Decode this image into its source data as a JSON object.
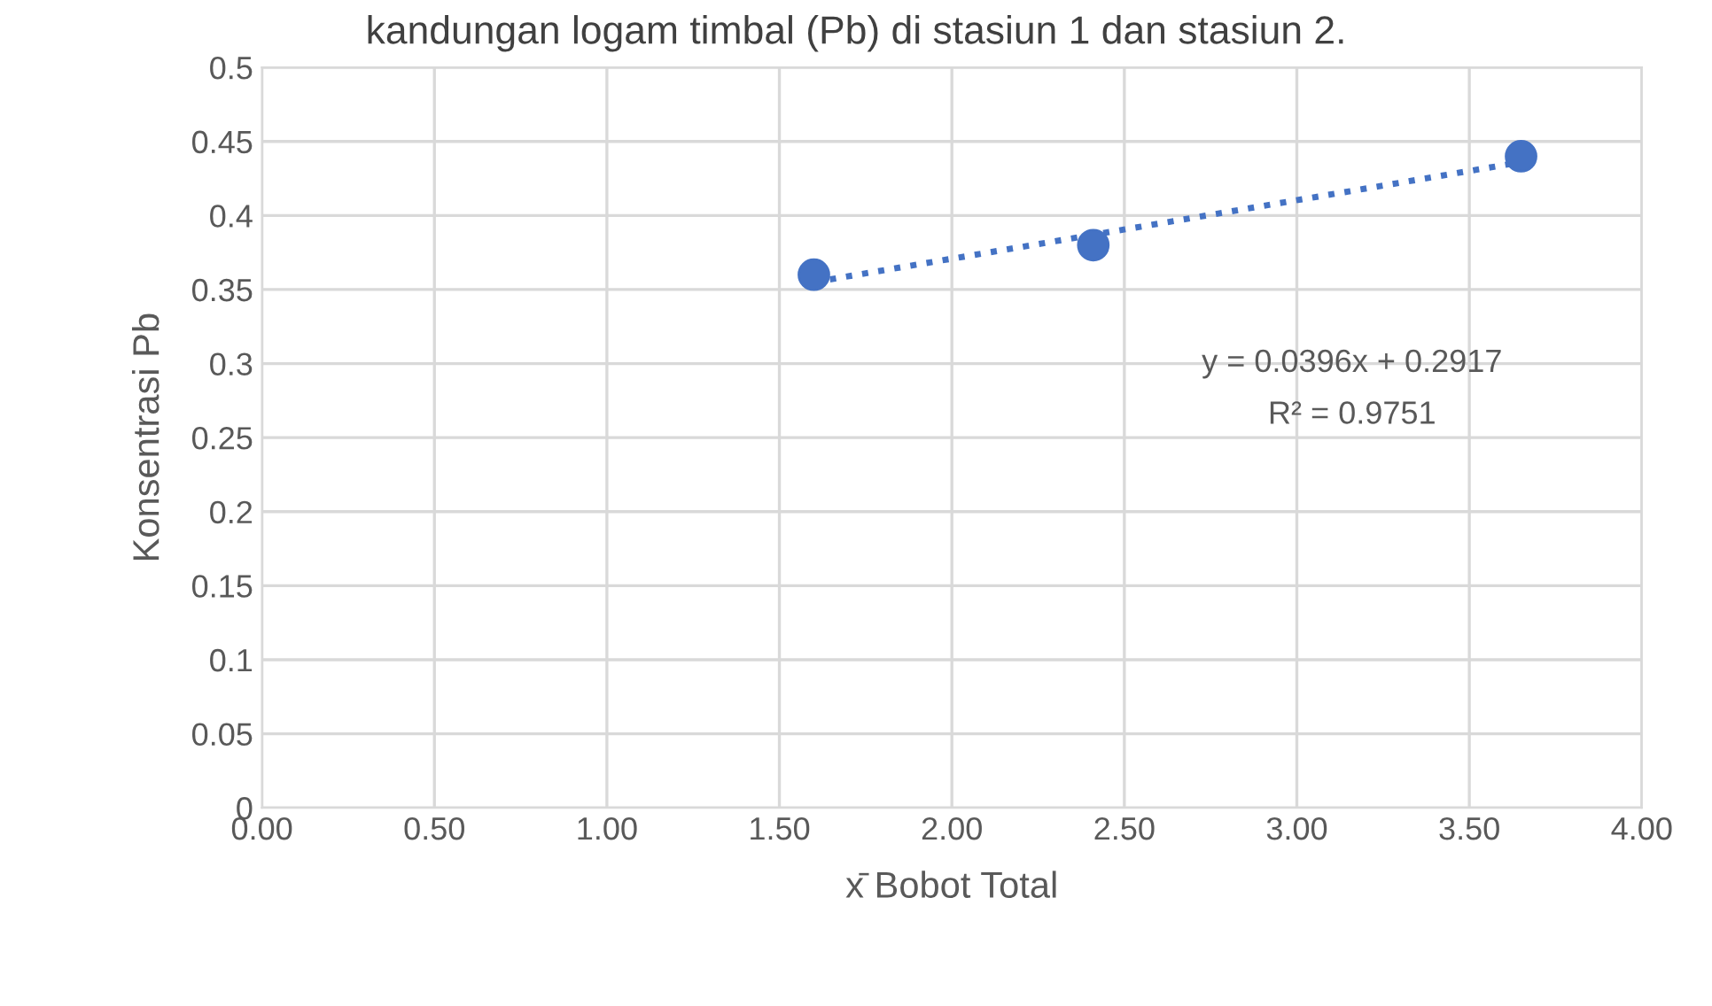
{
  "chart_data": {
    "type": "scatter",
    "title": "kandungan logam timbal (Pb) di stasiun 1 dan stasiun 2.",
    "xlabel": "x̄ Bobot Total",
    "ylabel": "Konsentrasi Pb",
    "x": [
      1.6,
      2.41,
      3.65
    ],
    "series": [
      {
        "type": "scatter",
        "color": "#4472c4",
        "values": [
          0.36,
          0.38,
          0.44
        ],
        "marker": "circle"
      },
      {
        "type": "line",
        "color": "#4472c4",
        "x": [
          1.6,
          3.65
        ],
        "values": [
          0.355,
          0.436
        ],
        "line_style": "dotted",
        "marker": "none"
      }
    ],
    "annotations": [
      "y = 0.0396x + 0.2917",
      "R² = 0.9751"
    ],
    "xlim": [
      0,
      4
    ],
    "xticks": [
      {
        "value": 0,
        "label": "0.00"
      },
      {
        "value": 0.5,
        "label": "0.50"
      },
      {
        "value": 1,
        "label": "1.00"
      },
      {
        "value": 1.5,
        "label": "1.50"
      },
      {
        "value": 2,
        "label": "2.00"
      },
      {
        "value": 2.5,
        "label": "2.50"
      },
      {
        "value": 3,
        "label": "3.00"
      },
      {
        "value": 3.5,
        "label": "3.50"
      },
      {
        "value": 4,
        "label": "4.00"
      }
    ],
    "ylim": [
      0,
      0.5
    ],
    "yticks": [
      0,
      0.05,
      0.1,
      0.15,
      0.2,
      0.25,
      0.3,
      0.35,
      0.4,
      0.45,
      0.5
    ],
    "grid": true
  }
}
